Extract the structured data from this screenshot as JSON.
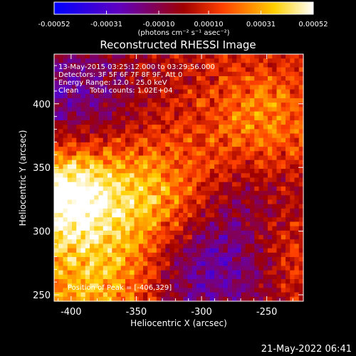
{
  "colorbar": {
    "tick_labels": [
      "-0.00052",
      "-0.00031",
      "-0.00010",
      "0.00010",
      "0.00031",
      "0.00052"
    ],
    "tick_values": [
      -0.00052,
      -0.00031,
      -0.0001,
      0.0001,
      0.00031,
      0.00052
    ],
    "range": [
      -0.00052,
      0.00052
    ],
    "unit_label": "(photons cm⁻² s⁻¹ asec⁻²)",
    "colors": [
      "#0000ff",
      "#6000c0",
      "#a00000",
      "#ff4000",
      "#ffd000",
      "#ffffff"
    ]
  },
  "chart_data": {
    "type": "heatmap",
    "title": "Reconstructed RHESSI Image",
    "xlabel": "Heliocentric X (arcsec)",
    "ylabel": "Heliocentric Y (arcsec)",
    "xlim": [
      -413,
      -222
    ],
    "ylim": [
      245,
      439
    ],
    "x_ticks": [
      -400,
      -350,
      -300,
      -250
    ],
    "x_tick_labels": [
      "-400",
      "-350",
      "-300",
      "-250"
    ],
    "y_ticks": [
      250,
      300,
      350,
      400
    ],
    "y_tick_labels": [
      "250",
      "300",
      "350",
      "400"
    ],
    "annotations": [
      "13-May-2015 03:25:12.000 to 03:29:56.000",
      "Detectors: 3F 5F 6F 7F 8F 9F, Att 0",
      "Energy Range: 12.0 - 25.0 keV",
      "Clean     Total counts: 1.02E+04"
    ],
    "peak_label": "Position of Peak = [-406,329]",
    "peak": [
      -406,
      329
    ],
    "approx_sources": [
      {
        "x": -406,
        "y": 329,
        "level": 1.0
      },
      {
        "x": -340,
        "y": 325,
        "level": 0.6
      },
      {
        "x": -250,
        "y": 380,
        "level": 0.55
      },
      {
        "x": -235,
        "y": 300,
        "level": 0.45
      },
      {
        "x": -385,
        "y": 255,
        "level": 0.55
      }
    ],
    "approx_negative_regions": [
      {
        "x": -400,
        "y": 405,
        "level": -0.45
      },
      {
        "x": -290,
        "y": 275,
        "level": -0.6
      },
      {
        "x": -245,
        "y": 330,
        "level": -0.5
      }
    ]
  },
  "footer_date": "21-May-2022 06:41"
}
